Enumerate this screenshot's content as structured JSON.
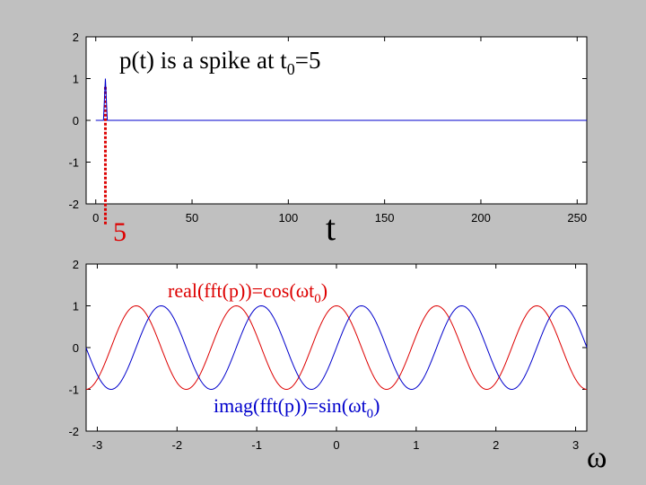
{
  "chart_data": [
    {
      "type": "line",
      "title": "p(t) is a spike at t",
      "title_sub": "0",
      "title_tail": "=5",
      "xlabel": "t",
      "xlim": [
        -5,
        255
      ],
      "ylim": [
        -2,
        2
      ],
      "xticks": [
        "0",
        "50",
        "100",
        "150",
        "200",
        "250"
      ],
      "yticks": [
        "2",
        "1",
        "0",
        "-1",
        "-2"
      ],
      "annotation": "5",
      "marker_x": 5,
      "series": [
        {
          "color": "#0000cc",
          "x": [
            0,
            4,
            5,
            6,
            7,
            255
          ],
          "y": [
            0,
            0,
            1,
            0,
            0,
            0
          ]
        }
      ]
    },
    {
      "type": "line",
      "xlabel": "ω",
      "xlim": [
        -3.14,
        3.14
      ],
      "ylim": [
        -2,
        2
      ],
      "xticks": [
        "-3",
        "-2",
        "-1",
        "0",
        "1",
        "2",
        "3"
      ],
      "yticks": [
        "2",
        "1",
        "0",
        "-1",
        "-2"
      ],
      "t0": 5,
      "series": [
        {
          "label": "real(fft(p))=cos(ωt",
          "label_sub": "0",
          "label_tail": ")",
          "function": "cos",
          "color": "#dd0000"
        },
        {
          "label": "imag(fft(p))=sin(ωt",
          "label_sub": "0",
          "label_tail": ")",
          "function": "sin",
          "color": "#0000cc"
        }
      ]
    }
  ]
}
